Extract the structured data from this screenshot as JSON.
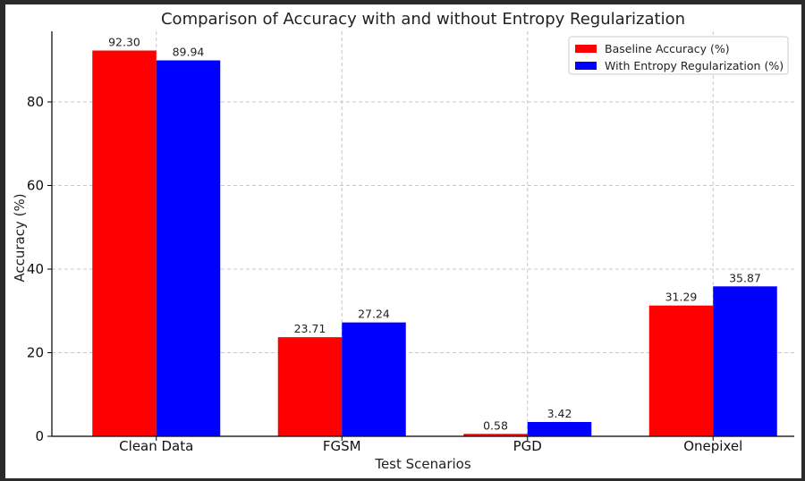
{
  "chart_data": {
    "type": "bar",
    "title": "Comparison of Accuracy with and without Entropy Regularization",
    "xlabel": "Test Scenarios",
    "ylabel": "Accuracy (%)",
    "ylim": [
      0,
      96.9
    ],
    "yticks": [
      0,
      20,
      40,
      60,
      80
    ],
    "categories": [
      "Clean Data",
      "FGSM",
      "PGD",
      "Onepixel"
    ],
    "series": [
      {
        "name": "Baseline Accuracy (%)",
        "color": "#ff0000",
        "values": [
          92.3,
          23.71,
          0.58,
          31.29
        ],
        "labels": [
          "92.30",
          "23.71",
          "0.58",
          "31.29"
        ]
      },
      {
        "name": "With Entropy Regularization (%)",
        "color": "#0000ff",
        "values": [
          89.94,
          27.24,
          3.42,
          35.87
        ],
        "labels": [
          "89.94",
          "27.24",
          "3.42",
          "35.87"
        ]
      }
    ],
    "grid": true,
    "legend_position": "top-right"
  }
}
